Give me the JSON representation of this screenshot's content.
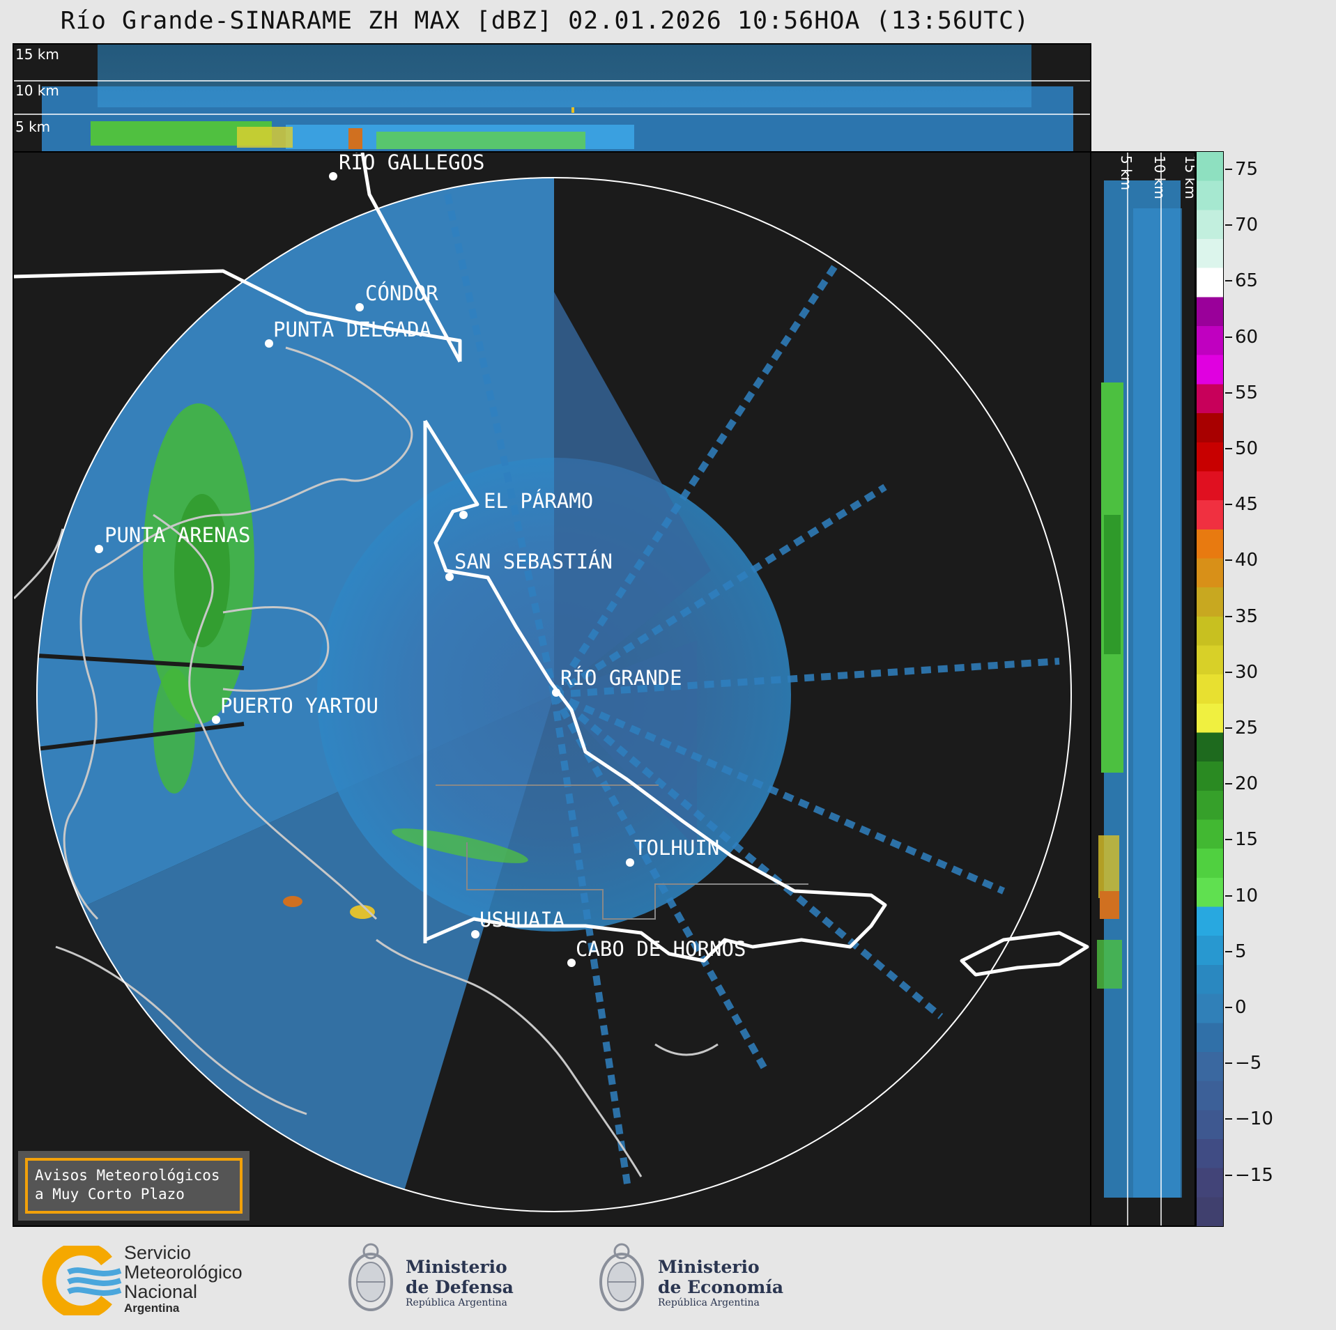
{
  "header": {
    "title": "Río Grande-SINARAME ZH MAX [dBZ] 02.01.2026 10:56HOA (13:56UTC)"
  },
  "top_panel": {
    "altitudes": [
      "15 km",
      "10 km",
      "5 km"
    ]
  },
  "side_panel": {
    "altitudes": [
      "5 km",
      "10 km",
      "15 km"
    ]
  },
  "colorbar": {
    "ticks": [
      "75",
      "70",
      "65",
      "60",
      "55",
      "50",
      "45",
      "40",
      "35",
      "30",
      "25",
      "20",
      "15",
      "10",
      "5",
      "0",
      "−5",
      "−10",
      "−15"
    ],
    "colors": [
      "#8ee0c0",
      "#a6e8d0",
      "#c2efde",
      "#dcf5ec",
      "#ffffff",
      "#9a009a",
      "#c000c0",
      "#e000e0",
      "#c8005a",
      "#a80000",
      "#c80000",
      "#e01020",
      "#f03040",
      "#e87a10",
      "#d89018",
      "#c8a820",
      "#c8c020",
      "#d8d028",
      "#e8e030",
      "#f0f040",
      "#1e6a1e",
      "#2a8a22",
      "#36a02a",
      "#42b832",
      "#50d040",
      "#60e050",
      "#28a8e0",
      "#2898d0",
      "#2a88c0",
      "#3080b8",
      "#3070a8",
      "#3a68a0",
      "#3c6098",
      "#3e5890",
      "#404c84",
      "#424478",
      "#40406e"
    ]
  },
  "cities": [
    {
      "name": "RÍO GALLEGOS"
    },
    {
      "name": "CÓNDOR"
    },
    {
      "name": "PUNTA DELGADA"
    },
    {
      "name": "EL PÁRAMO"
    },
    {
      "name": "SAN SEBASTIÁN"
    },
    {
      "name": "PUNTA ARENAS"
    },
    {
      "name": "RÍO GRANDE"
    },
    {
      "name": "PUERTO YARTOU"
    },
    {
      "name": "TOLHUIN"
    },
    {
      "name": "USHUAIA"
    },
    {
      "name": "CABO DE HORNOS"
    }
  ],
  "alert": {
    "line1": "Avisos Meteorológicos",
    "line2": "a Muy Corto Plazo"
  },
  "footer": {
    "smn": {
      "line1": "Servicio",
      "line2": "Meteorológico",
      "line3": "Nacional",
      "line4": "Argentina"
    },
    "defensa": {
      "line1": "Ministerio",
      "line2": "de Defensa",
      "line3": "República Argentina"
    },
    "economia": {
      "line1": "Ministerio",
      "line2": "de Economía",
      "line3": "República Argentina"
    }
  }
}
